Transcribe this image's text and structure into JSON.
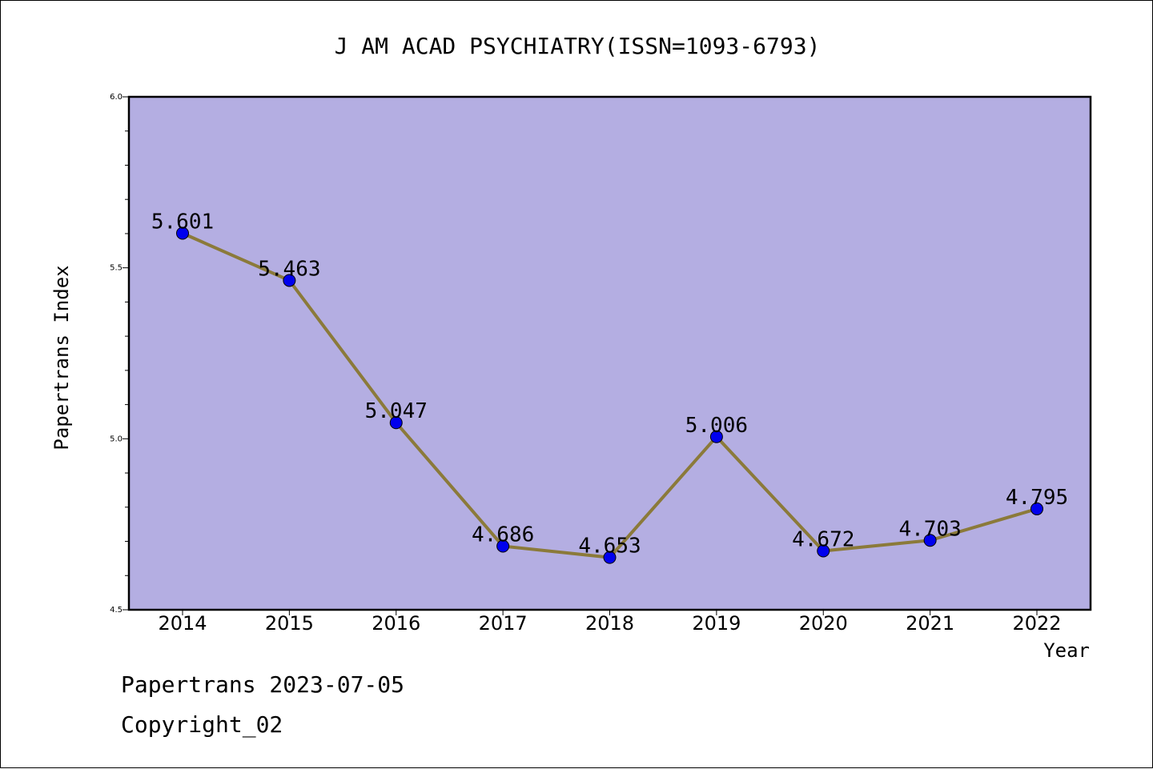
{
  "footer": {
    "line1": "Papertrans 2023-07-05",
    "line2": "Copyright_02"
  },
  "chart_data": {
    "type": "line",
    "title": "J AM ACAD PSYCHIATRY(ISSN=1093-6793)",
    "xlabel": "Year",
    "ylabel": "Papertrans Index",
    "categories": [
      "2014",
      "2015",
      "2016",
      "2017",
      "2018",
      "2019",
      "2020",
      "2021",
      "2022"
    ],
    "values": [
      5.601,
      5.463,
      5.047,
      4.686,
      4.653,
      5.006,
      4.672,
      4.703,
      4.795
    ],
    "data_labels": [
      "5.601",
      "5.463",
      "5.047",
      "4.686",
      "4.653",
      "5.006",
      "4.672",
      "4.703",
      "4.795"
    ],
    "ylim": [
      4.5,
      6.0
    ],
    "yticks": [
      "4.5",
      "5.0",
      "5.5",
      "6.0"
    ],
    "grid": false,
    "colors": {
      "plot_background": "#b4aee2",
      "line": "#8b7a3a",
      "marker": "#0000ee"
    }
  }
}
